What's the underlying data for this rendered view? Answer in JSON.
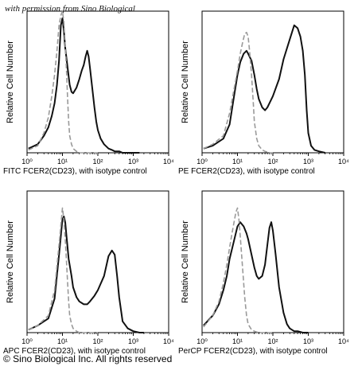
{
  "watermark": "with permission from Sino Biological",
  "footer": "© Sino Biological Inc. All rights reserved",
  "colors": {
    "sample": "#111111",
    "isotype": "#9a9a9a"
  },
  "chart_data": [
    {
      "type": "line",
      "ylabel": "Relative Cell Number",
      "xlabel": "FITC FCER2(CD23), with isotype control",
      "x_scale": "log",
      "xlim": [
        1,
        10000
      ],
      "ylim": [
        0,
        100
      ],
      "x_ticks": [
        "10⁰",
        "10¹",
        "10²",
        "10³",
        "10⁴"
      ],
      "series": [
        {
          "style": "solid-black",
          "x": [
            1.1,
            2,
            3,
            4,
            5,
            6,
            7,
            8,
            9,
            10,
            11,
            12,
            14,
            16,
            18,
            20,
            25,
            30,
            35,
            40,
            45,
            50,
            55,
            60,
            70,
            80,
            90,
            100,
            120,
            150,
            200,
            250,
            300,
            400,
            500,
            700,
            1000,
            1500
          ],
          "y": [
            3,
            6,
            12,
            18,
            26,
            35,
            48,
            65,
            90,
            95,
            86,
            74,
            60,
            48,
            43,
            42,
            46,
            52,
            58,
            62,
            68,
            72,
            68,
            60,
            45,
            32,
            22,
            16,
            10,
            6,
            3,
            2,
            1,
            1,
            0,
            0,
            0,
            0
          ]
        },
        {
          "style": "dashed-gray",
          "x": [
            1.1,
            2,
            3,
            4,
            5,
            6,
            7,
            8,
            9,
            10,
            11,
            12,
            13,
            14,
            15,
            16,
            18,
            20,
            25,
            30,
            40,
            60,
            100
          ],
          "y": [
            2,
            5,
            14,
            25,
            40,
            55,
            72,
            90,
            97,
            100,
            92,
            76,
            58,
            38,
            22,
            12,
            6,
            3,
            1,
            0,
            0,
            0,
            0
          ]
        }
      ]
    },
    {
      "type": "line",
      "ylabel": "Relative Cell Number",
      "xlabel": "PE FCER2(CD23), with isotype control",
      "x_scale": "log",
      "xlim": [
        1,
        10000
      ],
      "ylim": [
        0,
        100
      ],
      "x_ticks": [
        "10⁰",
        "10¹",
        "10²",
        "10³",
        "10⁴"
      ],
      "series": [
        {
          "style": "solid-black",
          "x": [
            1.1,
            2,
            4,
            6,
            8,
            10,
            12,
            15,
            18,
            20,
            25,
            30,
            35,
            40,
            50,
            60,
            70,
            80,
            100,
            150,
            200,
            300,
            400,
            500,
            600,
            700,
            800,
            900,
            1000,
            1200,
            1500,
            2000,
            3000
          ],
          "y": [
            3,
            5,
            10,
            20,
            40,
            55,
            64,
            70,
            72,
            70,
            65,
            55,
            45,
            38,
            32,
            30,
            32,
            35,
            40,
            52,
            66,
            80,
            90,
            88,
            82,
            72,
            55,
            30,
            14,
            5,
            2,
            1,
            0
          ]
        },
        {
          "style": "dashed-gray",
          "x": [
            1.1,
            2,
            4,
            6,
            8,
            10,
            12,
            14,
            16,
            18,
            20,
            22,
            25,
            28,
            30,
            35,
            40,
            50,
            60,
            80,
            100
          ],
          "y": [
            3,
            6,
            12,
            28,
            45,
            58,
            70,
            78,
            84,
            85,
            82,
            72,
            55,
            35,
            22,
            10,
            5,
            2,
            1,
            0,
            0
          ]
        }
      ]
    },
    {
      "type": "line",
      "ylabel": "Relative Cell Number",
      "xlabel": "APC FCER2(CD23), with isotype control",
      "x_scale": "log",
      "xlim": [
        1,
        10000
      ],
      "ylim": [
        0,
        100
      ],
      "x_ticks": [
        "10⁰",
        "10¹",
        "10²",
        "10³",
        "10⁴"
      ],
      "series": [
        {
          "style": "solid-black",
          "x": [
            1.1,
            2,
            4,
            6,
            8,
            10,
            11,
            12,
            13,
            15,
            18,
            20,
            25,
            30,
            40,
            50,
            60,
            80,
            100,
            150,
            200,
            250,
            300,
            350,
            400,
            500,
            700,
            1000,
            1500,
            2000
          ],
          "y": [
            2,
            5,
            10,
            24,
            55,
            80,
            82,
            78,
            68,
            52,
            40,
            32,
            25,
            22,
            20,
            20,
            22,
            26,
            30,
            40,
            54,
            58,
            55,
            40,
            25,
            8,
            3,
            1,
            0,
            0
          ]
        },
        {
          "style": "dashed-gray",
          "x": [
            1.1,
            2,
            4,
            6,
            8,
            10,
            11,
            12,
            13,
            14,
            15,
            16,
            18,
            20,
            25,
            30,
            40,
            60,
            100
          ],
          "y": [
            2,
            5,
            12,
            30,
            62,
            88,
            80,
            66,
            50,
            35,
            22,
            12,
            6,
            3,
            1,
            0,
            0,
            0,
            0
          ]
        }
      ]
    },
    {
      "type": "line",
      "ylabel": "Relative Cell Number",
      "xlabel": "PerCP FCER2(CD23), with isotype control",
      "x_scale": "log",
      "xlim": [
        1,
        10000
      ],
      "ylim": [
        0,
        100
      ],
      "x_ticks": [
        "10⁰",
        "10¹",
        "10²",
        "10³",
        "10⁴"
      ],
      "series": [
        {
          "style": "solid-black",
          "x": [
            1.1,
            2,
            3,
            4,
            5,
            6,
            8,
            10,
            12,
            15,
            18,
            20,
            25,
            30,
            35,
            40,
            50,
            60,
            70,
            80,
            90,
            100,
            120,
            150,
            200,
            250,
            300,
            400,
            500,
            700,
            1000
          ],
          "y": [
            5,
            12,
            20,
            30,
            40,
            52,
            65,
            75,
            78,
            75,
            70,
            66,
            55,
            46,
            40,
            38,
            40,
            48,
            62,
            74,
            78,
            72,
            55,
            32,
            14,
            6,
            3,
            1,
            1,
            0,
            0
          ]
        },
        {
          "style": "dashed-gray",
          "x": [
            1.1,
            2,
            3,
            4,
            5,
            6,
            7,
            8,
            9,
            10,
            11,
            12,
            14,
            16,
            18,
            20,
            25,
            30,
            40,
            60,
            100
          ],
          "y": [
            4,
            12,
            22,
            35,
            48,
            60,
            70,
            78,
            85,
            88,
            80,
            68,
            45,
            25,
            12,
            6,
            2,
            1,
            0,
            0,
            0
          ]
        }
      ]
    }
  ]
}
